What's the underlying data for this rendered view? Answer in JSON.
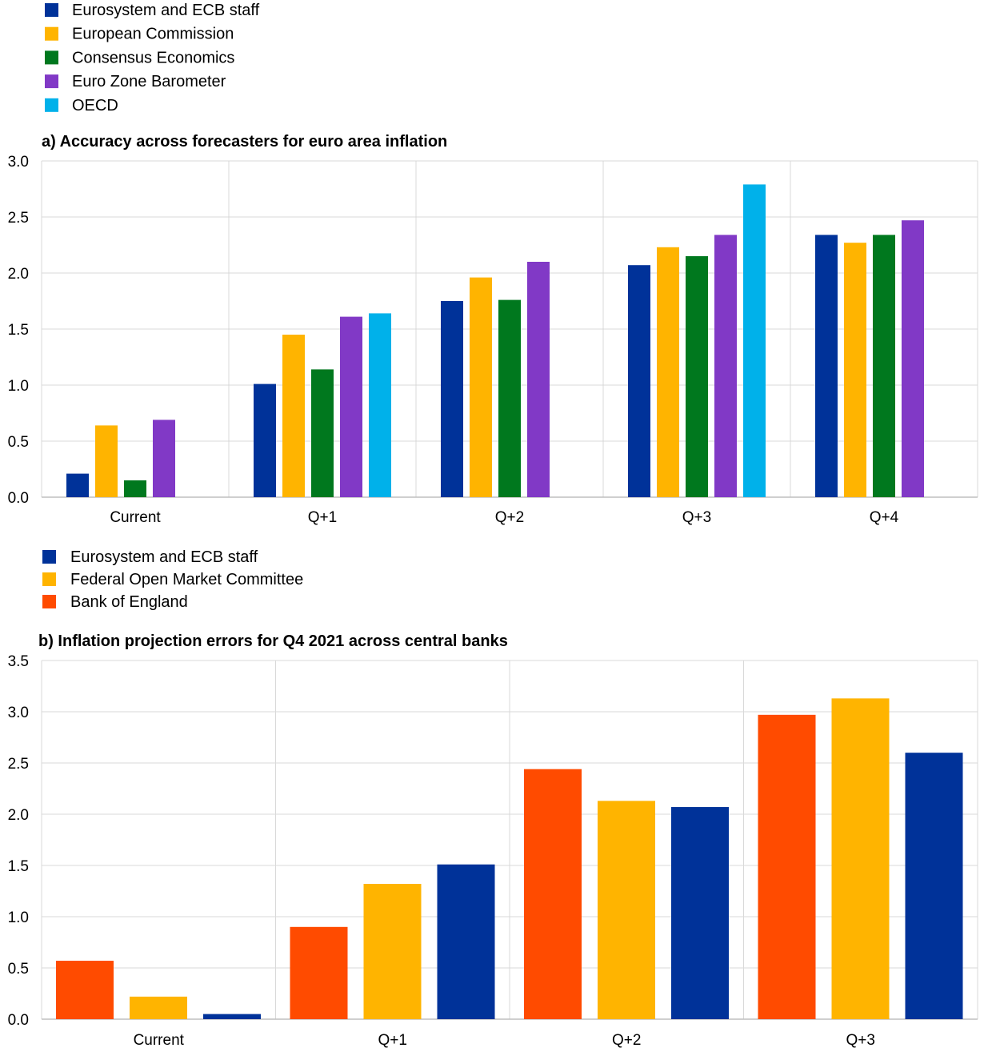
{
  "chart_data": [
    {
      "type": "bar",
      "title": "a) Accuracy across forecasters for euro area inflation",
      "xlabel": "",
      "ylabel": "",
      "ylim": [
        0,
        3.0
      ],
      "yticks": [
        "0.0",
        "0.5",
        "1.0",
        "1.5",
        "2.0",
        "2.5",
        "3.0"
      ],
      "grid": true,
      "legend_position": "top-left",
      "categories": [
        "Current",
        "Q+1",
        "Q+2",
        "Q+3",
        "Q+4"
      ],
      "series": [
        {
          "name": "Eurosystem and ECB staff",
          "color": "#003299",
          "values": [
            0.21,
            1.01,
            1.75,
            2.07,
            2.34
          ]
        },
        {
          "name": "European Commission",
          "color": "#FFB400",
          "values": [
            0.64,
            1.45,
            1.96,
            2.23,
            2.27
          ]
        },
        {
          "name": "Consensus Economics",
          "color": "#00781E",
          "values": [
            0.15,
            1.14,
            1.76,
            2.15,
            2.34
          ]
        },
        {
          "name": "Euro Zone Barometer",
          "color": "#8139C6",
          "values": [
            0.69,
            1.61,
            2.1,
            2.34,
            2.47
          ]
        },
        {
          "name": "OECD",
          "color": "#00B1EA",
          "values": [
            null,
            1.64,
            null,
            2.79,
            null
          ]
        }
      ]
    },
    {
      "type": "bar",
      "title": "b) Inflation projection errors for Q4 2021 across central banks",
      "xlabel": "",
      "ylabel": "",
      "ylim": [
        0,
        3.5
      ],
      "yticks": [
        "0.0",
        "0.5",
        "1.0",
        "1.5",
        "2.0",
        "2.5",
        "3.0",
        "3.5"
      ],
      "grid": true,
      "legend_position": "top-left",
      "categories": [
        "Current",
        "Q+1",
        "Q+2",
        "Q+3"
      ],
      "series": [
        {
          "name": "Eurosystem and ECB staff",
          "color": "#003299",
          "values": [
            0.05,
            1.51,
            2.07,
            2.6
          ]
        },
        {
          "name": "Federal Open Market Committee",
          "color": "#FFB400",
          "values": [
            0.22,
            1.32,
            2.13,
            3.13
          ]
        },
        {
          "name": "Bank of England",
          "color": "#FF4B00",
          "values": [
            0.57,
            0.9,
            2.44,
            2.97
          ]
        }
      ],
      "bar_draw_order": [
        "Bank of England",
        "Federal Open Market Committee",
        "Eurosystem and ECB staff"
      ]
    }
  ]
}
